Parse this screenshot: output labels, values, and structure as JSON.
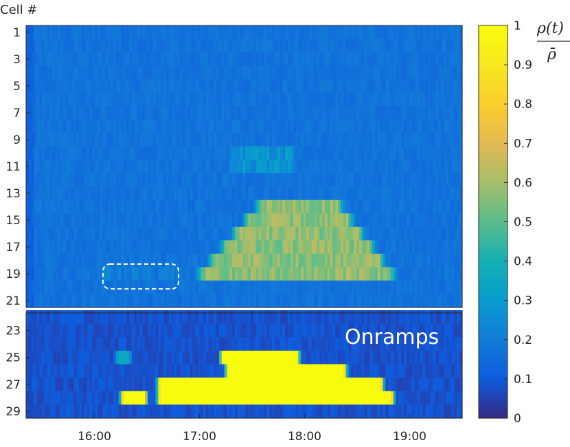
{
  "chart_data": [
    {
      "type": "heatmap",
      "panel": "cells",
      "ylabel": "Cell #",
      "x": {
        "tick_labels": [
          "16:00",
          "17:00",
          "18:00",
          "19:00"
        ],
        "tick_hours": [
          16,
          17,
          18,
          19
        ],
        "range_hours": [
          15.35,
          19.5
        ]
      },
      "y": {
        "tick_labels": [
          "1",
          "3",
          "5",
          "7",
          "9",
          "11",
          "13",
          "15",
          "17",
          "19",
          "21"
        ],
        "tick_values": [
          1,
          3,
          5,
          7,
          9,
          11,
          13,
          15,
          17,
          19,
          21
        ],
        "range": [
          0.5,
          21.5
        ]
      },
      "background_value": 0.17,
      "features": [
        {
          "description": "congestion region",
          "rows": [
            14,
            19
          ],
          "start_hour": 17.0,
          "end_hour": 18.85,
          "peak_value": 0.6
        },
        {
          "description": "light congestion",
          "rows": [
            10,
            11
          ],
          "start_hour": 17.3,
          "end_hour": 17.9,
          "peak_value": 0.3
        },
        {
          "description": "highlighted early congestion (dashed box)",
          "rows": [
            19,
            19
          ],
          "start_hour": 16.05,
          "end_hour": 16.8,
          "peak_value": 0.22
        }
      ]
    },
    {
      "type": "heatmap",
      "panel": "onramps",
      "annotation": "Onramps",
      "y": {
        "tick_labels": [
          "23",
          "25",
          "27",
          "29"
        ],
        "tick_values": [
          23,
          25,
          27,
          29
        ],
        "range": [
          21.7,
          29.5
        ]
      },
      "background_value": 0.08,
      "blocks": [
        {
          "row": 25,
          "start_hour": 17.2,
          "end_hour": 17.95,
          "value": 1.0
        },
        {
          "row": 26,
          "start_hour": 17.25,
          "end_hour": 18.4,
          "value": 1.0
        },
        {
          "row": 27,
          "start_hour": 16.6,
          "end_hour": 18.75,
          "value": 1.0
        },
        {
          "row": 28,
          "start_hour": 16.25,
          "end_hour": 16.5,
          "value": 1.0
        },
        {
          "row": 28,
          "start_hour": 16.6,
          "end_hour": 18.85,
          "value": 1.0
        },
        {
          "row": 25,
          "start_hour": 16.2,
          "end_hour": 16.35,
          "value": 0.35
        }
      ]
    },
    {
      "type": "colorbar",
      "label": "ρ(t) / ρ̄",
      "label_num": "ρ(t)",
      "label_den": "ρ̄",
      "ticks": [
        0,
        0.1,
        0.2,
        0.3,
        0.4,
        0.5,
        0.6,
        0.7,
        0.8,
        0.9,
        1
      ],
      "tick_labels": [
        "0",
        "0.1",
        "0.2",
        "0.3",
        "0.4",
        "0.5",
        "0.6",
        "0.7",
        "0.8",
        "0.9",
        "1"
      ],
      "range": [
        0,
        1
      ],
      "colormap": "parula"
    }
  ]
}
